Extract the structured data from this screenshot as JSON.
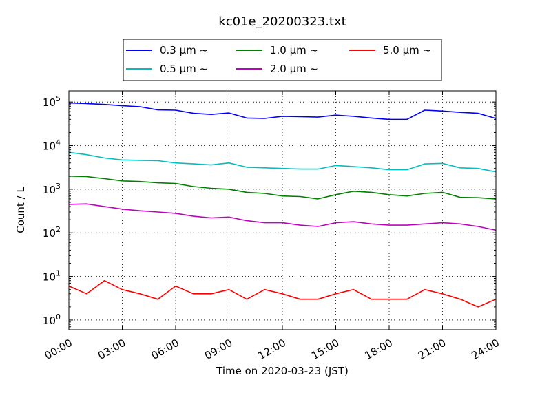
{
  "chart_data": {
    "type": "line",
    "title": "kc01e_20200323.txt",
    "xlabel": "Time on 2020-03-23 (JST)",
    "ylabel": "Count / L",
    "yscale": "log",
    "ylim": [
      0.6,
      180000
    ],
    "xlim": [
      "00:00",
      "24:00"
    ],
    "grid": true,
    "legend_position": "top-center, outside plot",
    "x_ticks": [
      "00:00",
      "03:00",
      "06:00",
      "09:00",
      "12:00",
      "15:00",
      "18:00",
      "21:00",
      "24:00"
    ],
    "y_ticks": [
      {
        "value": 1,
        "label": "10",
        "exp": "0"
      },
      {
        "value": 10,
        "label": "10",
        "exp": "1"
      },
      {
        "value": 100,
        "label": "10",
        "exp": "2"
      },
      {
        "value": 1000,
        "label": "10",
        "exp": "3"
      },
      {
        "value": 10000,
        "label": "10",
        "exp": "4"
      },
      {
        "value": 100000,
        "label": "10",
        "exp": "5"
      }
    ],
    "x_hours": [
      0,
      1,
      2,
      3,
      4,
      5,
      6,
      7,
      8,
      9,
      10,
      11,
      12,
      13,
      14,
      15,
      16,
      17,
      18,
      19,
      20,
      21,
      22,
      23,
      24
    ],
    "series": [
      {
        "name": "0.3 μm  ~",
        "color": "#0000ff",
        "values": [
          95000,
          92000,
          88000,
          82000,
          78000,
          66000,
          65000,
          55000,
          52000,
          56000,
          43000,
          42000,
          47000,
          46000,
          45000,
          50000,
          47000,
          43000,
          40000,
          40000,
          65000,
          62000,
          58000,
          55000,
          42000
        ]
      },
      {
        "name": "0.5 μm  ~",
        "color": "#00bfbf",
        "values": [
          7000,
          6200,
          5200,
          4700,
          4600,
          4500,
          4000,
          3800,
          3600,
          4000,
          3200,
          3100,
          3000,
          2900,
          2900,
          3500,
          3300,
          3100,
          2800,
          2800,
          3800,
          3900,
          3100,
          3000,
          2500
        ]
      },
      {
        "name": "1.0 μm  ~",
        "color": "#008000",
        "values": [
          2000,
          1950,
          1750,
          1550,
          1500,
          1400,
          1350,
          1150,
          1050,
          1000,
          850,
          800,
          700,
          680,
          600,
          750,
          900,
          850,
          750,
          700,
          800,
          850,
          650,
          640,
          600
        ]
      },
      {
        "name": "2.0 μm  ~",
        "color": "#bf00bf",
        "values": [
          450,
          460,
          400,
          350,
          320,
          300,
          280,
          240,
          220,
          230,
          190,
          170,
          170,
          150,
          140,
          170,
          180,
          160,
          150,
          150,
          160,
          170,
          160,
          140,
          115
        ]
      },
      {
        "name": "5.0 μm  ~",
        "color": "#ff0000",
        "values": [
          6,
          4,
          8,
          5,
          4,
          3,
          6,
          4,
          4,
          5,
          3,
          5,
          4,
          3,
          3,
          4,
          5,
          3,
          3,
          3,
          5,
          4,
          3,
          2,
          3
        ]
      }
    ]
  }
}
